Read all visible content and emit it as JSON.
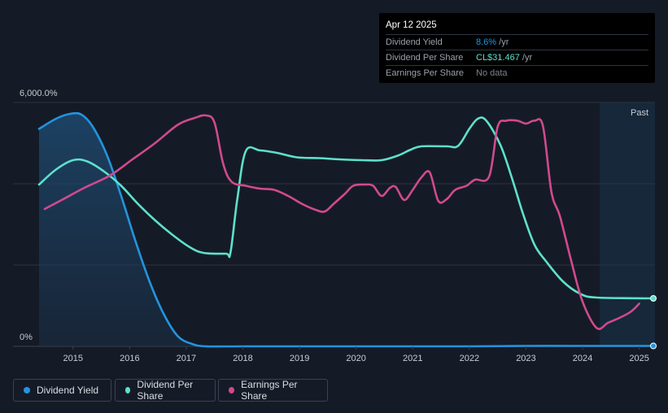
{
  "chart_data": {
    "type": "line",
    "x_ticks": [
      "2015",
      "2016",
      "2017",
      "2018",
      "2019",
      "2020",
      "2021",
      "2022",
      "2023",
      "2024",
      "2025"
    ],
    "y_ticks": [
      "6,000.0%",
      "0%"
    ],
    "ylim": [
      0,
      6000
    ],
    "xlim": [
      2014.4,
      2025.25
    ],
    "region_label": "Past",
    "forecast_region_start": 2024.3,
    "grid": true,
    "legend_position": "bottom-left",
    "series": [
      {
        "name": "Dividend Yield",
        "color": "#2394df",
        "fill": true,
        "points": [
          [
            2014.4,
            5350
          ],
          [
            2014.7,
            5600
          ],
          [
            2014.95,
            5720
          ],
          [
            2015.15,
            5700
          ],
          [
            2015.35,
            5400
          ],
          [
            2015.6,
            4700
          ],
          [
            2015.85,
            3700
          ],
          [
            2016.1,
            2600
          ],
          [
            2016.35,
            1600
          ],
          [
            2016.6,
            800
          ],
          [
            2016.85,
            250
          ],
          [
            2017.1,
            60
          ],
          [
            2017.35,
            0
          ],
          [
            2018,
            0
          ],
          [
            2019,
            0
          ],
          [
            2020,
            0
          ],
          [
            2021,
            0
          ],
          [
            2022,
            0
          ],
          [
            2023,
            10
          ],
          [
            2024,
            10
          ],
          [
            2025.25,
            10
          ]
        ]
      },
      {
        "name": "Dividend Per Share",
        "color": "#5ee0cc",
        "points": [
          [
            2014.4,
            3980
          ],
          [
            2014.7,
            4350
          ],
          [
            2015.0,
            4580
          ],
          [
            2015.25,
            4550
          ],
          [
            2015.55,
            4300
          ],
          [
            2015.85,
            3950
          ],
          [
            2016.15,
            3500
          ],
          [
            2016.45,
            3100
          ],
          [
            2016.75,
            2750
          ],
          [
            2017.05,
            2450
          ],
          [
            2017.3,
            2300
          ],
          [
            2017.7,
            2280
          ],
          [
            2017.78,
            2300
          ],
          [
            2017.9,
            3600
          ],
          [
            2018.05,
            4800
          ],
          [
            2018.3,
            4820
          ],
          [
            2018.6,
            4760
          ],
          [
            2018.95,
            4650
          ],
          [
            2019.35,
            4630
          ],
          [
            2019.7,
            4600
          ],
          [
            2020.1,
            4580
          ],
          [
            2020.45,
            4580
          ],
          [
            2020.75,
            4700
          ],
          [
            2020.95,
            4830
          ],
          [
            2021.15,
            4920
          ],
          [
            2021.6,
            4920
          ],
          [
            2021.8,
            4930
          ],
          [
            2022.0,
            5350
          ],
          [
            2022.15,
            5600
          ],
          [
            2022.3,
            5550
          ],
          [
            2022.55,
            4950
          ],
          [
            2022.75,
            4150
          ],
          [
            2022.95,
            3250
          ],
          [
            2023.15,
            2500
          ],
          [
            2023.35,
            2100
          ],
          [
            2023.65,
            1600
          ],
          [
            2023.95,
            1300
          ],
          [
            2024.25,
            1200
          ],
          [
            2025.25,
            1180
          ]
        ]
      },
      {
        "name": "Earnings Per Share",
        "color": "#d04a8e",
        "points": [
          [
            2014.5,
            3380
          ],
          [
            2014.8,
            3600
          ],
          [
            2015.2,
            3900
          ],
          [
            2015.65,
            4200
          ],
          [
            2016.05,
            4600
          ],
          [
            2016.45,
            5000
          ],
          [
            2016.85,
            5450
          ],
          [
            2017.15,
            5620
          ],
          [
            2017.35,
            5680
          ],
          [
            2017.5,
            5500
          ],
          [
            2017.65,
            4500
          ],
          [
            2017.8,
            4050
          ],
          [
            2018.05,
            3950
          ],
          [
            2018.3,
            3880
          ],
          [
            2018.55,
            3850
          ],
          [
            2018.8,
            3700
          ],
          [
            2019.05,
            3500
          ],
          [
            2019.3,
            3350
          ],
          [
            2019.45,
            3320
          ],
          [
            2019.6,
            3500
          ],
          [
            2019.8,
            3750
          ],
          [
            2019.95,
            3950
          ],
          [
            2020.15,
            3980
          ],
          [
            2020.3,
            3950
          ],
          [
            2020.45,
            3700
          ],
          [
            2020.6,
            3900
          ],
          [
            2020.7,
            3920
          ],
          [
            2020.85,
            3600
          ],
          [
            2021.0,
            3850
          ],
          [
            2021.15,
            4150
          ],
          [
            2021.3,
            4280
          ],
          [
            2021.45,
            3580
          ],
          [
            2021.6,
            3620
          ],
          [
            2021.75,
            3850
          ],
          [
            2021.95,
            3950
          ],
          [
            2022.1,
            4100
          ],
          [
            2022.35,
            4180
          ],
          [
            2022.5,
            5400
          ],
          [
            2022.65,
            5550
          ],
          [
            2022.85,
            5550
          ],
          [
            2023.0,
            5480
          ],
          [
            2023.15,
            5550
          ],
          [
            2023.3,
            5420
          ],
          [
            2023.45,
            3800
          ],
          [
            2023.6,
            3200
          ],
          [
            2023.8,
            2100
          ],
          [
            2024.0,
            1100
          ],
          [
            2024.25,
            450
          ],
          [
            2024.45,
            580
          ],
          [
            2024.65,
            700
          ],
          [
            2024.85,
            850
          ],
          [
            2025.0,
            1050
          ]
        ]
      }
    ],
    "endpoints": [
      {
        "series": "Dividend Yield",
        "x": 2025.25,
        "y": 10
      },
      {
        "series": "Dividend Per Share",
        "x": 2025.25,
        "y": 1180
      }
    ]
  },
  "tooltip": {
    "date": "Apr 12 2025",
    "rows": [
      {
        "label": "Dividend Yield",
        "value": "8.6%",
        "unit": " /yr",
        "color": "#2394df"
      },
      {
        "label": "Dividend Per Share",
        "value": "CL$31.467",
        "unit": " /yr",
        "color": "#5ee0cc"
      },
      {
        "label": "Earnings Per Share",
        "value": "No data",
        "unit": "",
        "color": "#7c838e"
      }
    ]
  },
  "legend": {
    "items": [
      {
        "label": "Dividend Yield",
        "color": "#2394df"
      },
      {
        "label": "Dividend Per Share",
        "color": "#5ee0cc"
      },
      {
        "label": "Earnings Per Share",
        "color": "#d04a8e"
      }
    ]
  }
}
